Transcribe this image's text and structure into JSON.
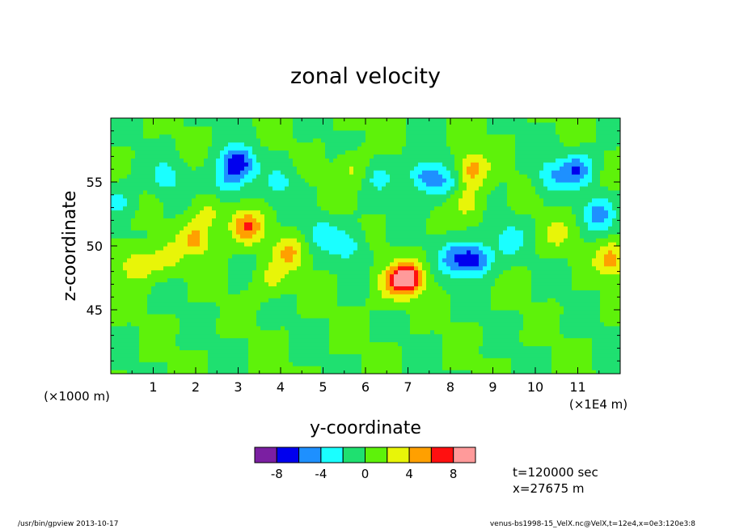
{
  "chart_data": {
    "type": "heatmap",
    "title": "zonal velocity",
    "xlabel": "y-coordinate",
    "ylabel": "z-coordinate",
    "x_unit_left": "(×1000 m)",
    "x_unit_right": "(×1E4 m)",
    "xlim": [
      0,
      12
    ],
    "ylim": [
      40,
      60
    ],
    "x_ticks": [
      "1",
      "2",
      "3",
      "4",
      "5",
      "6",
      "7",
      "8",
      "9",
      "10",
      "11"
    ],
    "y_ticks": [
      "45",
      "50",
      "55"
    ],
    "grid": false,
    "colorbar": {
      "levels": [
        -10,
        -8,
        -6,
        -4,
        -2,
        0,
        2,
        4,
        6,
        8,
        10
      ],
      "colors": [
        "#7b1fa2",
        "#0000ee",
        "#1e90ff",
        "#1affff",
        "#1fe070",
        "#5ef20a",
        "#e8f508",
        "#ffa000",
        "#ff1010",
        "#ff9a9a"
      ],
      "tick_labels": [
        "-8",
        "-4",
        "0",
        "4",
        "8"
      ],
      "tick_values": [
        -8,
        -4,
        0,
        4,
        8
      ]
    },
    "features": [
      {
        "y": 3.0,
        "z": 56.5,
        "value": -7.5
      },
      {
        "y": 2.7,
        "z": 55.0,
        "value": -3.5
      },
      {
        "y": 1.3,
        "z": 55.5,
        "value": -3.0
      },
      {
        "y": 2.3,
        "z": 52.5,
        "value": 2.5
      },
      {
        "y": 2.0,
        "z": 50.5,
        "value": 4.5
      },
      {
        "y": 3.2,
        "z": 51.5,
        "value": 6.0
      },
      {
        "y": 4.2,
        "z": 49.5,
        "value": 4.0
      },
      {
        "y": 5.0,
        "z": 51.0,
        "value": -3.0
      },
      {
        "y": 5.6,
        "z": 50.0,
        "value": -3.0
      },
      {
        "y": 7.0,
        "z": 47.5,
        "value": 9.0
      },
      {
        "y": 6.6,
        "z": 47.0,
        "value": 3.5
      },
      {
        "y": 7.4,
        "z": 55.5,
        "value": -5.0
      },
      {
        "y": 7.9,
        "z": 55.0,
        "value": -3.0
      },
      {
        "y": 8.5,
        "z": 56.0,
        "value": 5.0
      },
      {
        "y": 8.4,
        "z": 53.5,
        "value": 3.0
      },
      {
        "y": 8.1,
        "z": 49.0,
        "value": -5.0
      },
      {
        "y": 8.6,
        "z": 49.0,
        "value": -6.5
      },
      {
        "y": 9.4,
        "z": 50.5,
        "value": -3.0
      },
      {
        "y": 10.4,
        "z": 55.5,
        "value": -3.5
      },
      {
        "y": 10.5,
        "z": 51.0,
        "value": 2.5
      },
      {
        "y": 11.0,
        "z": 56.0,
        "value": -5.5
      },
      {
        "y": 11.5,
        "z": 52.5,
        "value": -4.5
      },
      {
        "y": 11.8,
        "z": 49.0,
        "value": 5.0
      },
      {
        "y": 0.6,
        "z": 48.5,
        "value": 4.0
      },
      {
        "y": 1.3,
        "z": 49.0,
        "value": 2.5
      },
      {
        "y": 0.2,
        "z": 53.5,
        "value": -2.5
      },
      {
        "y": 4.0,
        "z": 55.0,
        "value": -2.5
      },
      {
        "y": 6.3,
        "z": 55.5,
        "value": -2.5
      },
      {
        "y": 5.7,
        "z": 56.0,
        "value": 2.5
      },
      {
        "y": 3.8,
        "z": 47.5,
        "value": 2.5
      }
    ]
  },
  "info": {
    "time": "t=120000 sec",
    "position": "x=27675 m"
  },
  "footer": {
    "left": "/usr/bin/gpview  2013-10-17",
    "right": "venus-bs1998-15_VelX.nc@VelX,t=12e4,x=0e3:120e3:8"
  }
}
